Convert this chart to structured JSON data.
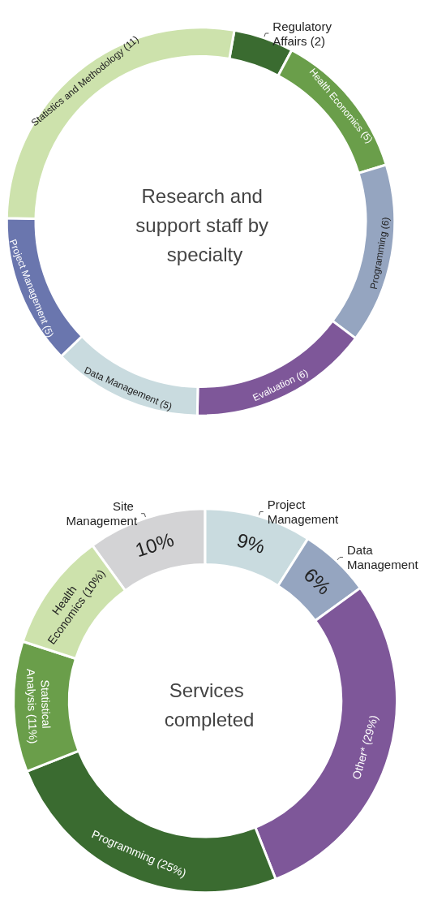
{
  "chart_data": [
    {
      "type": "donut",
      "title": "Research and support staff by specialty",
      "categories": [
        "Regulatory Affairs",
        "Health Economics",
        "Programming",
        "Evaluation",
        "Data Management",
        "Project Management",
        "Statistics and Methodology"
      ],
      "values": [
        2,
        5,
        6,
        6,
        5,
        5,
        11
      ],
      "value_labels": [
        "(2)",
        "(5)",
        "(6)",
        "(6)",
        "(5)",
        "(5)",
        "(11)"
      ],
      "colors": [
        "#3a6b30",
        "#6a9e4a",
        "#95a5c0",
        "#7e5799",
        "#c9dbdf",
        "#6a76ae",
        "#cde2ac"
      ],
      "legend": false
    },
    {
      "type": "donut",
      "title": "Services completed",
      "categories": [
        "Site Management",
        "Project Management",
        "Data Management",
        "Other*",
        "Programming",
        "Statistical Analysis",
        "Health Economics"
      ],
      "values": [
        10,
        9,
        6,
        29,
        25,
        11,
        10
      ],
      "value_labels": [
        "10%",
        "9%",
        "6%",
        "(29%)",
        "(25%)",
        "(11%)",
        "(10%)"
      ],
      "colors": [
        "#d3d3d5",
        "#c9dbdf",
        "#95a5c0",
        "#7e5799",
        "#3a6b30",
        "#6a9e4a",
        "#cde2ac"
      ],
      "legend": false
    }
  ]
}
